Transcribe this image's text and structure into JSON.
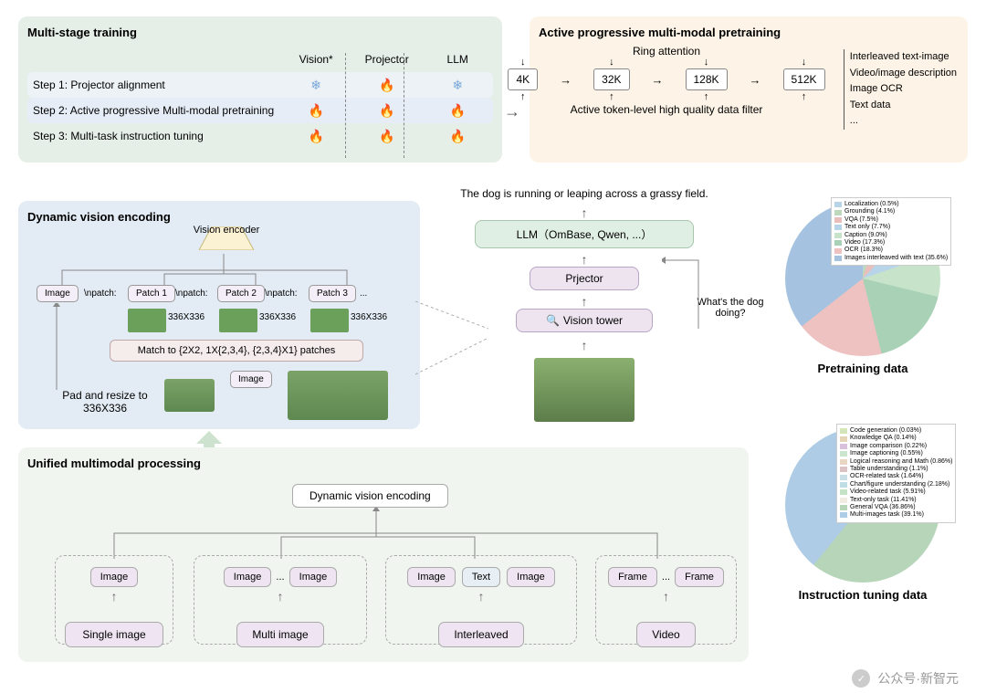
{
  "mst": {
    "title": "Multi-stage training",
    "headers": [
      "Vision*",
      "Projector",
      "LLM"
    ],
    "rows": [
      {
        "label": "Step 1: Projector alignment",
        "states": [
          "frozen",
          "fire",
          "frozen"
        ]
      },
      {
        "label": "Step 2: Active progressive Multi-modal pretraining",
        "states": [
          "fire",
          "fire",
          "fire"
        ]
      },
      {
        "label": "Step 3: Multi-task instruction tuning",
        "states": [
          "fire",
          "fire",
          "fire"
        ]
      }
    ]
  },
  "apm": {
    "title": "Active progressive multi-modal pretraining",
    "ring": "Ring attention",
    "tokens": [
      "4K",
      "32K",
      "128K",
      "512K"
    ],
    "bottom": "Active token-level high quality data filter",
    "list": [
      "Interleaved text-image",
      "Video/image description",
      "Image OCR",
      "Text data",
      "..."
    ]
  },
  "dve": {
    "title": "Dynamic vision encoding",
    "venc": "Vision encoder",
    "image_lbl": "Image",
    "npatch": "\\npatch:",
    "patches": [
      "Patch 1",
      "Patch 2",
      "Patch 3"
    ],
    "dots": "...",
    "dim": "336X336",
    "match": "Match to {2X2, 1X{2,3,4}, {2,3,4}X1} patches",
    "pad": "Pad and resize to 336X336"
  },
  "center": {
    "caption": "The dog is running or leaping across a grassy field.",
    "llm": "LLM（OmBase, Qwen, ...）",
    "proj": "Prjector",
    "vt": "Vision tower",
    "q": "What's the dog doing?"
  },
  "ump": {
    "title": "Unified multimodal processing",
    "dve": "Dynamic vision encoding",
    "image": "Image",
    "text": "Text",
    "frame": "Frame",
    "dots": "...",
    "cats": [
      "Single image",
      "Multi image",
      "Interleaved",
      "Video"
    ]
  },
  "pie1": {
    "title": "Pretraining data",
    "items": [
      {
        "label": "Localization (0.5%)",
        "color": "#b8d4e8"
      },
      {
        "label": "Grounding (4.1%)",
        "color": "#bdd8bb"
      },
      {
        "label": "VQA (7.5%)",
        "color": "#e9bebb"
      },
      {
        "label": "Text only (7.7%)",
        "color": "#b8d4e8"
      },
      {
        "label": "Caption (9.0%)",
        "color": "#c7e4cb"
      },
      {
        "label": "Video (17.3%)",
        "color": "#a9d1b5"
      },
      {
        "label": "OCR (18.3%)",
        "color": "#edc2c1"
      },
      {
        "label": "Images interleaved with text (35.6%)",
        "color": "#a5c3e0"
      }
    ]
  },
  "pie2": {
    "title": "Instruction tuning data",
    "items": [
      {
        "label": "Code generation (0.03%)",
        "color": "#d4e6b7"
      },
      {
        "label": "Knowledge QA (0.14%)",
        "color": "#e5d4b5"
      },
      {
        "label": "Image comparison (0.22%)",
        "color": "#d9c0dc"
      },
      {
        "label": "Image captioning (0.55%)",
        "color": "#cbe5cf"
      },
      {
        "label": "Logical reasoning and Math (0.86%)",
        "color": "#e8d5c2"
      },
      {
        "label": "Table understanding (1.1%)",
        "color": "#dcc3c3"
      },
      {
        "label": "OCR-related task (1.64%)",
        "color": "#c8e0e5"
      },
      {
        "label": "Chart/figure understanding (2.18%)",
        "color": "#bfdde5"
      },
      {
        "label": "Video-related task (5.91%)",
        "color": "#c5e3c6"
      },
      {
        "label": "Text-only task (11.41%)",
        "color": "#f1ece2"
      },
      {
        "label": "General VQA (36.86%)",
        "color": "#b7d5b9"
      },
      {
        "label": "Multi-images task (39.1%)",
        "color": "#aecce5"
      }
    ]
  },
  "watermark": "公众号·新智元"
}
